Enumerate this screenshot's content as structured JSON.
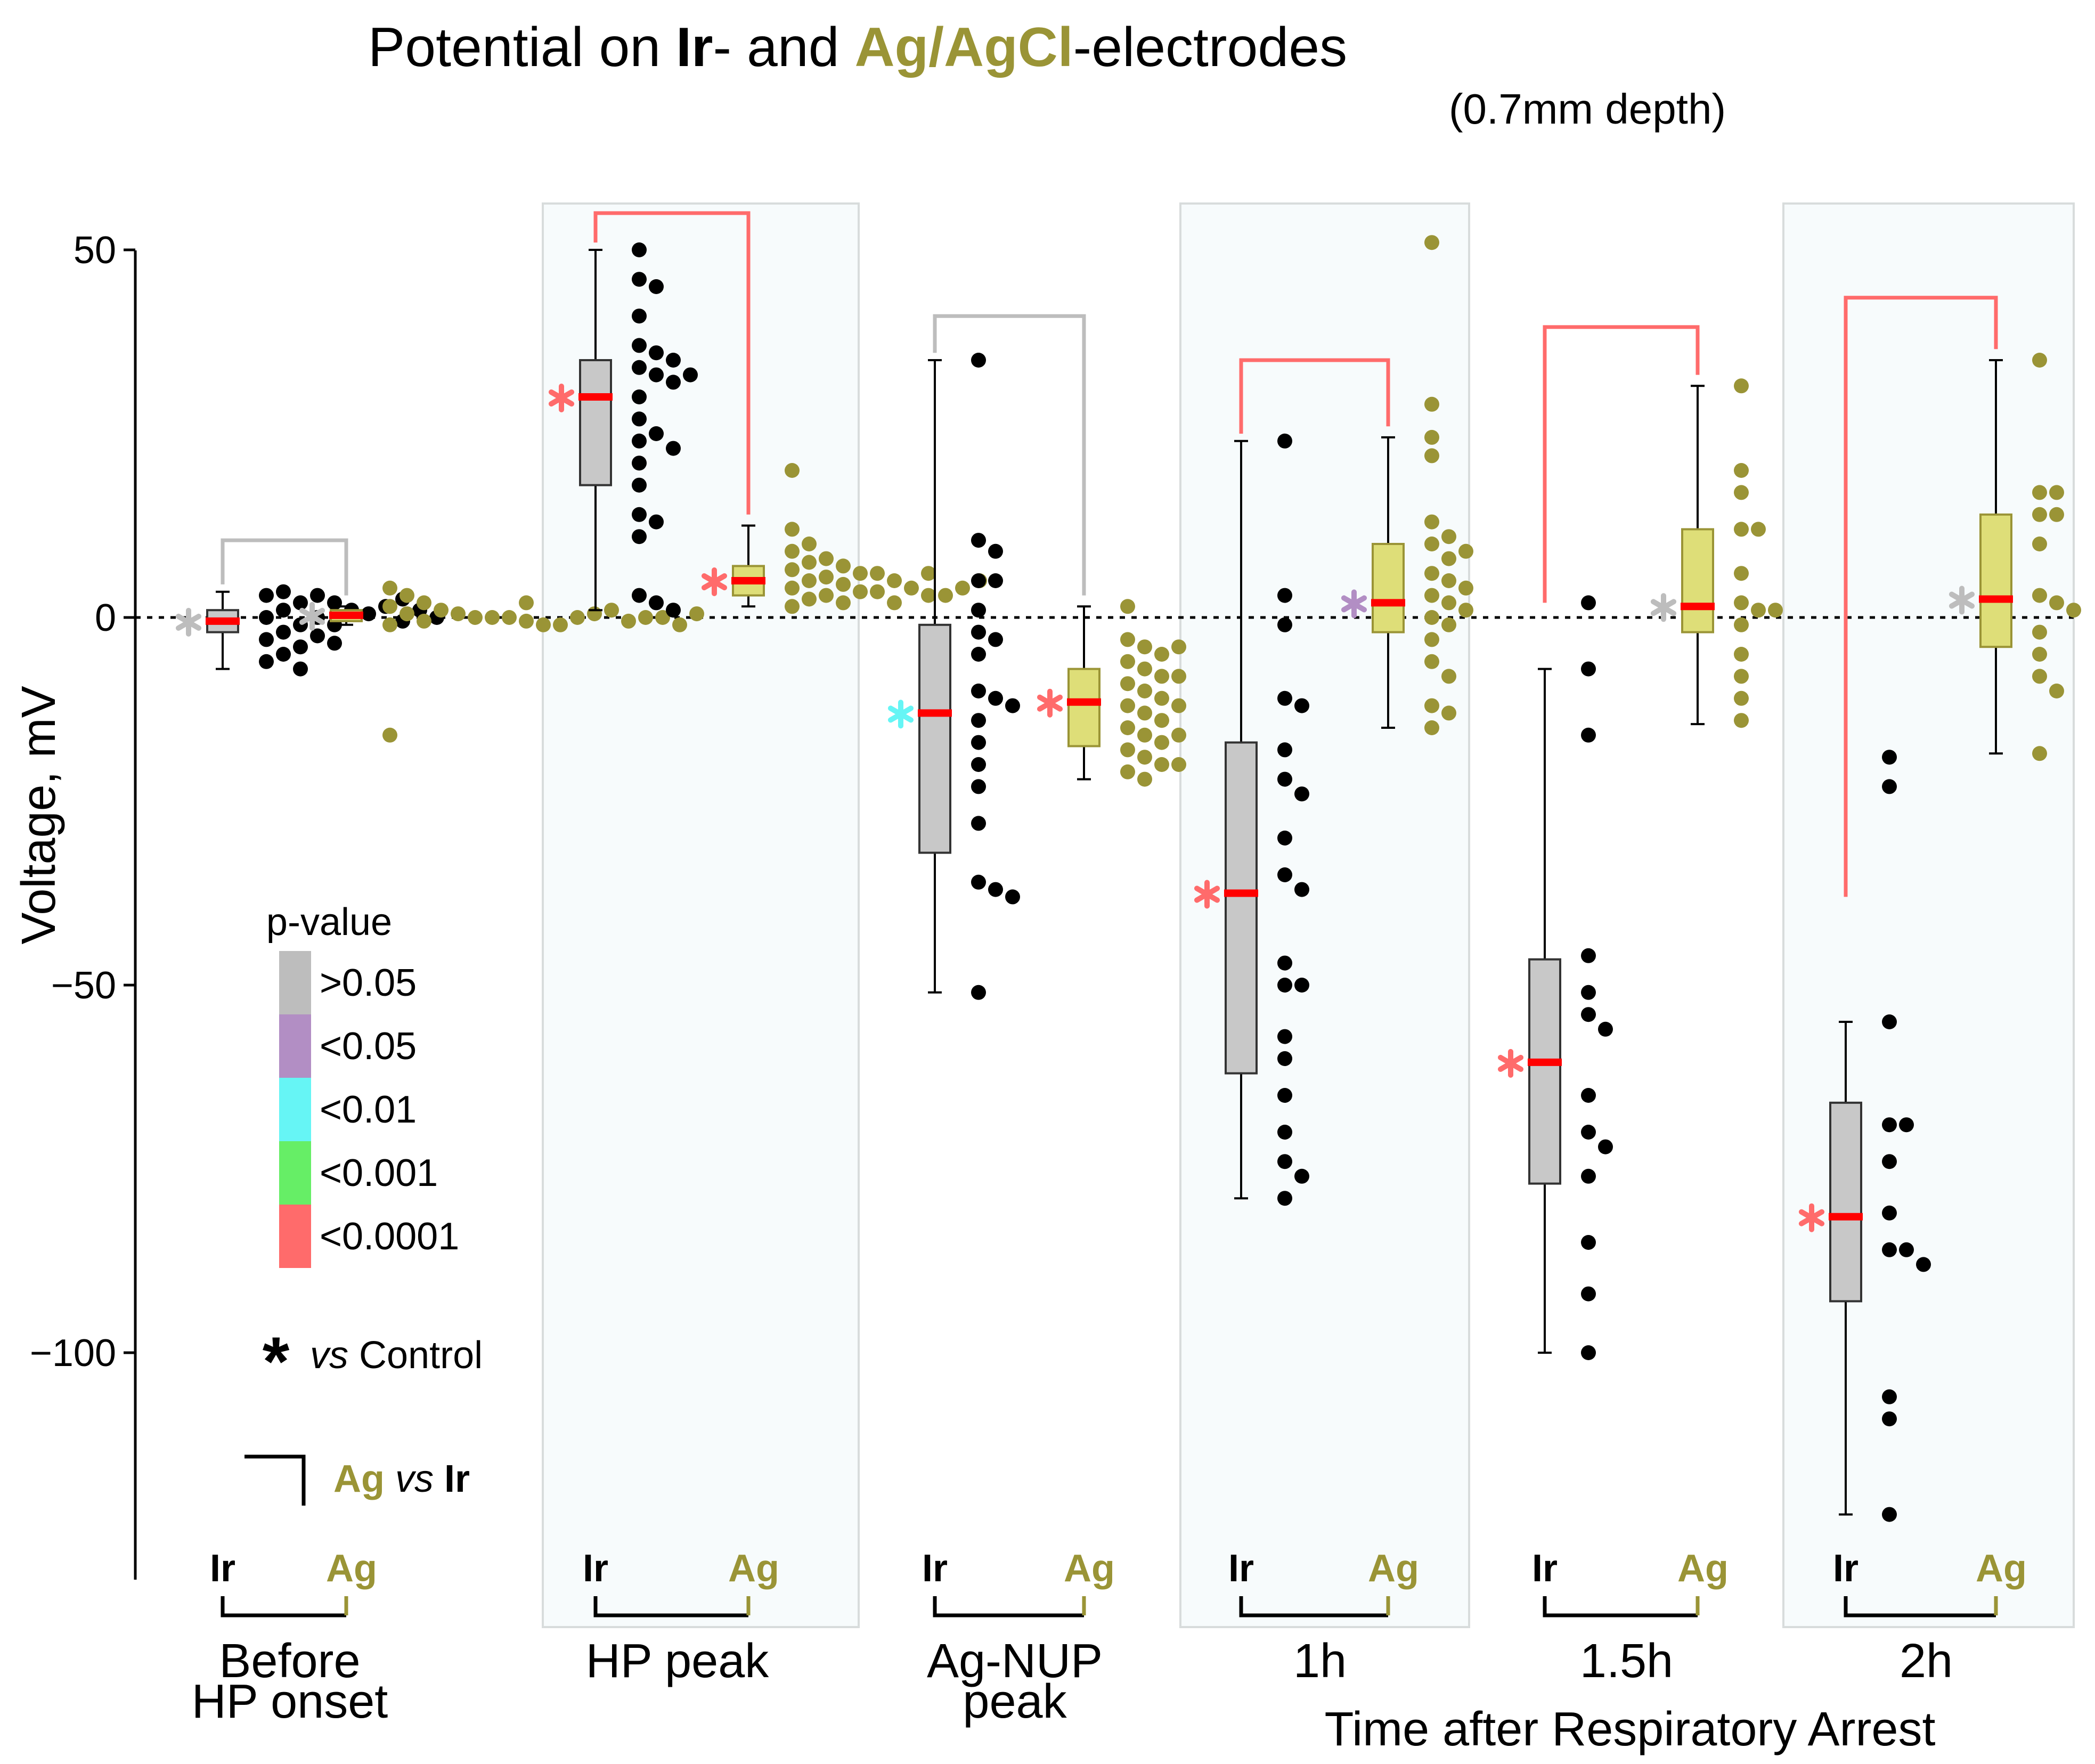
{
  "chart_data": {
    "type": "box",
    "title": {
      "prefix": "Potential on ",
      "ir": "Ir",
      "mid": "- and ",
      "ag": "Ag/AgCl",
      "suffix": "-electrodes"
    },
    "subtitle": "(0.7mm depth)",
    "ylabel": "Voltage, mV",
    "xlabel": "Time after Respiratory Arrest",
    "ylim": [
      -130,
      55
    ],
    "yticks": [
      50,
      0,
      -50,
      -100
    ],
    "ytick_labels": [
      "50",
      "0",
      "−50",
      "−100"
    ],
    "zero_line": "dotted",
    "colors": {
      "ir": "#000000",
      "ag": "#9a9436",
      "ag_box": "#dede78",
      "ir_box": "#c8c8c8",
      "median": "#ff0000",
      "panel": "#f7fbfc",
      "p_gt_005": "#bdbdbd",
      "p_lt_005": "#b28ec4",
      "p_lt_001": "#66f5f5",
      "p_lt_0001": "#66ee66",
      "p_lt_00001": "#ff6b6b"
    },
    "legend": {
      "title": "p-value",
      "entries": [
        ">0.05",
        "<0.05",
        "<0.01",
        "<0.001",
        "<0.0001"
      ],
      "star_vs": "vs",
      "star_control": "Control",
      "bracket_ag": "Ag",
      "bracket_vs": "vs",
      "bracket_ir": "Ir"
    },
    "electrode_labels": {
      "ir": "Ir",
      "ag": "Ag"
    },
    "groups": [
      {
        "label": [
          "Before",
          "HP onset"
        ],
        "ir": {
          "box": [
            -7,
            -2,
            -0.5,
            1,
            3.5
          ],
          "star": "p_gt_005",
          "points": [
            0,
            1,
            2,
            3,
            3.5,
            3,
            2,
            1,
            0,
            -1,
            -2,
            -3,
            -4,
            -5,
            -6,
            -7,
            0.5,
            -1,
            1.5,
            -2.5,
            2.5,
            -0.5,
            1,
            -3.5,
            0
          ]
        },
        "ag": {
          "box": [
            -1,
            -0.5,
            0.3,
            1,
            1.5
          ],
          "star": "p_gt_005",
          "points": [
            4,
            3,
            2,
            1.5,
            1,
            0.5,
            0.5,
            0,
            0,
            0,
            -0.5,
            -0.5,
            -1,
            -1,
            -1,
            0,
            0.5,
            1,
            -0.5,
            0,
            -16,
            2,
            0,
            -1,
            0.5
          ]
        },
        "bracket": "p_gt_005",
        "bracket_y": 10.5
      },
      {
        "label": [
          "HP peak"
        ],
        "ir": {
          "box": [
            1,
            18,
            30,
            35,
            50
          ],
          "star": "p_lt_00001",
          "points": [
            50,
            46,
            45,
            41,
            37,
            36,
            35,
            34,
            33,
            33,
            32,
            30,
            27,
            25,
            24,
            23,
            21,
            18,
            14,
            13,
            11,
            3,
            2,
            1
          ]
        },
        "ag": {
          "box": [
            1.5,
            3,
            5,
            7,
            12.5
          ],
          "star": "p_lt_00001",
          "points": [
            20,
            12,
            10,
            9,
            8,
            7.5,
            7,
            6.5,
            6,
            6,
            5.5,
            5,
            5,
            4.5,
            4,
            4,
            3.5,
            3.5,
            3,
            3,
            2.5,
            2,
            2,
            1.5,
            3,
            4,
            5,
            6
          ]
        },
        "bracket": "p_lt_00001",
        "bracket_y": 55
      },
      {
        "label": [
          "Ag-NUP",
          "peak"
        ],
        "ir": {
          "box": [
            -51,
            -32,
            -13,
            -1,
            35
          ],
          "star": "p_lt_001",
          "points": [
            35,
            10.5,
            9,
            5,
            5,
            1,
            -2,
            -3,
            -5,
            -10,
            -11,
            -12,
            -14,
            -17,
            -20,
            -23,
            -28,
            -36,
            -37,
            -38,
            -51
          ]
        },
        "ag": {
          "box": [
            -22,
            -17.5,
            -11.5,
            -7,
            1.5
          ],
          "star": "p_lt_00001",
          "points": [
            1.5,
            -3,
            -4,
            -5,
            -6,
            -7,
            -8,
            -9,
            -10,
            -11,
            -12,
            -13,
            -14,
            -15,
            -16,
            -17,
            -18,
            -19,
            -20,
            -21,
            -22,
            -4,
            -8,
            -12,
            -16,
            -20
          ]
        },
        "bracket": "p_gt_005",
        "bracket_y": 41
      },
      {
        "label": [
          "1h"
        ],
        "ir": {
          "box": [
            -79,
            -62,
            -37.5,
            -17,
            24
          ],
          "star": "p_lt_00001",
          "points": [
            24,
            3,
            -1,
            -11,
            -12,
            -18,
            -22,
            -24,
            -30,
            -35,
            -37,
            -47,
            -50,
            -50,
            -57,
            -60,
            -65,
            -70,
            -74,
            -76,
            -79
          ]
        },
        "ag": {
          "box": [
            -15,
            -2,
            2,
            10,
            24.5
          ],
          "star": "p_lt_005",
          "points": [
            51,
            29,
            24.5,
            22,
            13,
            11,
            10,
            9,
            8,
            6,
            5,
            4,
            3,
            2,
            1,
            0,
            -1,
            -3,
            -6,
            -8,
            -12,
            -13,
            -15
          ]
        },
        "bracket": "p_lt_00001",
        "bracket_y": 35
      },
      {
        "label": [
          "1.5h"
        ],
        "ir": {
          "box": [
            -100,
            -77,
            -60.5,
            -46.5,
            -7
          ],
          "star": "p_lt_00001",
          "points": [
            2,
            -7,
            -16,
            -46,
            -51,
            -54,
            -56,
            -65,
            -70,
            -72,
            -76,
            -85,
            -92,
            -100
          ]
        },
        "ag": {
          "box": [
            -14.5,
            -2,
            1.5,
            12,
            31.5
          ],
          "star": "p_gt_005",
          "points": [
            31.5,
            20,
            17,
            12,
            12,
            6,
            2,
            1,
            1,
            -1,
            -5,
            -8,
            -11,
            -14
          ]
        },
        "bracket": "p_lt_00001",
        "bracket_y": 39.5,
        "bracket_left_end": 2
      },
      {
        "label": [
          "2h"
        ],
        "ir": {
          "box": [
            -122,
            -93,
            -81.5,
            -66,
            -55
          ],
          "star": "p_lt_00001",
          "points": [
            -19,
            -23,
            -55,
            -69,
            -69,
            -74,
            -81,
            -86,
            -86,
            -88,
            -106,
            -109,
            -122
          ]
        },
        "ag": {
          "box": [
            -18.5,
            -4,
            2.5,
            14,
            35
          ],
          "star": "p_gt_005",
          "points": [
            35,
            17,
            17,
            14,
            14,
            10,
            3,
            2,
            1,
            -2,
            -5,
            -8,
            -10,
            -18.5
          ]
        },
        "bracket": "p_lt_00001",
        "bracket_y": 43.5,
        "bracket_left_end": -38
      }
    ]
  }
}
